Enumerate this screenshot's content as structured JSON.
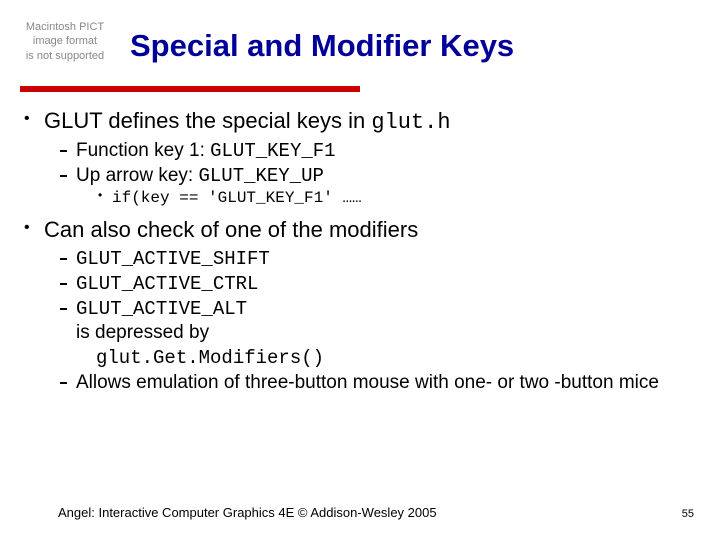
{
  "pict_placeholder": "Macintosh PICT\nimage format\nis not supported",
  "title": "Special and Modifier Keys",
  "colors": {
    "title": "#000099",
    "rule": "#cc0000",
    "text": "#000000",
    "background": "#ffffff"
  },
  "bullets": {
    "b1": "GLUT defines the special keys in ",
    "b1_code": "glut.h",
    "s1a_pre": "Function key 1: ",
    "s1a_code": "GLUT_KEY_F1",
    "s1b_pre": "Up arrow key: ",
    "s1b_code": "GLUT_KEY_UP",
    "s2a_code": "if(key == 'GLUT_KEY_F1' ……",
    "b2": "Can also check of one of the modifiers",
    "m1": "GLUT_ACTIVE_SHIFT",
    "m2": "GLUT_ACTIVE_CTRL",
    "m3": "GLUT_ACTIVE_ALT",
    "depressed": "is depressed by",
    "getmod": "glut.Get.Modifiers()",
    "allows": "Allows emulation of three-button mouse with one- or two -button mice"
  },
  "footer": "Angel: Interactive Computer Graphics 4E © Addison-Wesley 2005",
  "page": "55"
}
